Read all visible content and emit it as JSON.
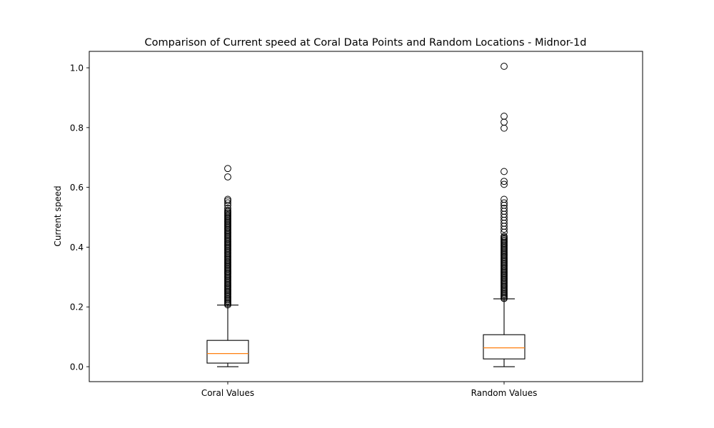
{
  "chart_data": {
    "type": "box",
    "title": "Comparison of Current speed at Coral Data Points and Random Locations - Midnor-1d",
    "xlabel": "",
    "ylabel": "Current speed",
    "ylim": [
      -0.05,
      1.055
    ],
    "yticks": [
      0.0,
      0.2,
      0.4,
      0.6,
      0.8,
      1.0
    ],
    "ytick_labels": [
      "0.0",
      "0.2",
      "0.4",
      "0.6",
      "0.8",
      "1.0"
    ],
    "grid": false,
    "categories": [
      "Coral Values",
      "Random Values"
    ],
    "boxes": [
      {
        "label": "Coral Values",
        "whisker_low": 0.0,
        "q1": 0.012,
        "median": 0.044,
        "q3": 0.088,
        "whisker_high": 0.206,
        "outlier_band": [
          0.207,
          0.525
        ],
        "outliers": [
          0.53,
          0.54,
          0.548,
          0.555,
          0.56,
          0.635,
          0.663
        ]
      },
      {
        "label": "Random Values",
        "whisker_low": 0.0,
        "q1": 0.026,
        "median": 0.063,
        "q3": 0.107,
        "whisker_high": 0.227,
        "outlier_band": [
          0.228,
          0.44
        ],
        "outliers": [
          0.45,
          0.46,
          0.47,
          0.48,
          0.49,
          0.5,
          0.51,
          0.52,
          0.53,
          0.54,
          0.548,
          0.56,
          0.61,
          0.62,
          0.653,
          0.798,
          0.818,
          0.838,
          1.005
        ]
      }
    ],
    "colors": {
      "median": "#ff7f0e",
      "box": "#000000",
      "flier": "#000000"
    }
  }
}
